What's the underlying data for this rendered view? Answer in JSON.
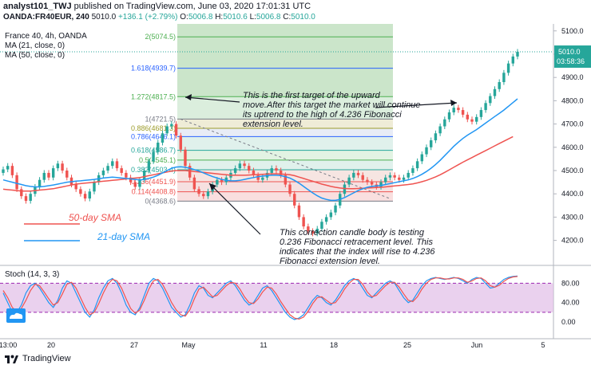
{
  "header": {
    "author": "analyst101_TWJ",
    "published": "published on TradingView.com, June 03, 2020 17:01:31 UTC",
    "symbol": "OANDA:FR40EUR, 240",
    "price": "5010.0",
    "change": "+136.1 (+2.79%)",
    "o_label": "O:",
    "o_value": "5006.8",
    "h_label": "H:",
    "h_value": "5010.6",
    "l_label": "L:",
    "l_value": "5006.8",
    "c_label": "C:",
    "c_value": "5010.0"
  },
  "legend": {
    "instrument": "France 40, 4h, OANDA",
    "ma21": "MA (21, close, 0)",
    "ma50": "MA (50, close, 0)",
    "stoch": "Stoch (14, 3, 3)"
  },
  "annotations": {
    "first_target": "This is the first target of the upward move.After this target the market will continue its uptrend to the high of 4.236 Fibonacci extension level.",
    "correction": "This correction candle body is testing 0.236 Fibonacci retracement  level. This indicates that the index will rise to 4.236 Fibonacci extension level.",
    "sma50": "50-day SMA",
    "sma21": "21-day SMA"
  },
  "fib_levels": [
    {
      "label": "2(5074.5)",
      "value": 5074.5,
      "color": "#4caf50"
    },
    {
      "label": "1.618(4939.7)",
      "value": 4939.7,
      "color": "#2962ff"
    },
    {
      "label": "1.272(4817.5)",
      "value": 4817.5,
      "color": "#4caf50"
    },
    {
      "label": "1(4721.5)",
      "value": 4721.5,
      "color": "#787b86"
    },
    {
      "label": "0.886(4681.3)",
      "value": 4681.3,
      "color": "#9c9c2a"
    },
    {
      "label": "0.786(4646.1)",
      "value": 4646.1,
      "color": "#2962ff"
    },
    {
      "label": "0.618(4586.7)",
      "value": 4586.7,
      "color": "#26a69a"
    },
    {
      "label": "0.5(4545.1)",
      "value": 4545.1,
      "color": "#4caf50"
    },
    {
      "label": "0.382(4503.4)",
      "value": 4503.4,
      "color": "#26a69a"
    },
    {
      "label": "0.236(4451.9)",
      "value": 4451.9,
      "color": "#ef5350"
    },
    {
      "label": "0.114(4408.8)",
      "value": 4408.8,
      "color": "#ef5350"
    },
    {
      "label": "0(4368.6)",
      "value": 4368.6,
      "color": "#787b86"
    }
  ],
  "chart_data": {
    "type": "candlestick",
    "title": "France 40, 4h, OANDA",
    "ylim": [
      4120,
      5130
    ],
    "y_ticks": [
      "5100.0",
      "5000.0",
      "4900.0",
      "4800.0",
      "4700.0",
      "4600.0",
      "4500.0",
      "4400.0",
      "4300.0",
      "4200.0"
    ],
    "x_ticks": [
      "13:00",
      "20",
      "27",
      "May",
      "11",
      "18",
      "25",
      "Jun",
      "5"
    ],
    "last_price": "5010.0",
    "countdown": "03:58:36",
    "close_series": [
      4505,
      4520,
      4480,
      4420,
      4390,
      4370,
      4400,
      4430,
      4460,
      4490,
      4470,
      4510,
      4530,
      4500,
      4470,
      4440,
      4420,
      4400,
      4380,
      4410,
      4450,
      4480,
      4500,
      4520,
      4540,
      4510,
      4490,
      4470,
      4450,
      4430,
      4460,
      4500,
      4540,
      4580,
      4620,
      4660,
      4690,
      4700,
      4650,
      4590,
      4520,
      4470,
      4420,
      4400,
      4390,
      4410,
      4440,
      4460,
      4450,
      4470,
      4490,
      4510,
      4530,
      4520,
      4500,
      4480,
      4460,
      4470,
      4490,
      4510,
      4500,
      4480,
      4440,
      4400,
      4350,
      4300,
      4260,
      4240,
      4230,
      4250,
      4280,
      4300,
      4320,
      4350,
      4400,
      4440,
      4470,
      4490,
      4480,
      4460,
      4450,
      4440,
      4430,
      4450,
      4470,
      4480,
      4470,
      4460,
      4470,
      4490,
      4510,
      4540,
      4570,
      4600,
      4630,
      4660,
      4690,
      4720,
      4750,
      4770,
      4760,
      4740,
      4720,
      4710,
      4730,
      4760,
      4790,
      4820,
      4850,
      4880,
      4920,
      4960,
      4990,
      5010
    ],
    "ma21_series": [
      4460,
      4455,
      4450,
      4445,
      4440,
      4435,
      4432,
      4430,
      4430,
      4432,
      4435,
      4438,
      4442,
      4446,
      4450,
      4452,
      4455,
      4456,
      4458,
      4460,
      4462,
      4465,
      4468,
      4470,
      4472,
      4470,
      4468,
      4466,
      4464,
      4462,
      4460,
      4462,
      4466,
      4472,
      4480,
      4490,
      4500,
      4510,
      4515,
      4516,
      4514,
      4510,
      4504,
      4498,
      4490,
      4482,
      4474,
      4468,
      4462,
      4458,
      4456,
      4456,
      4458,
      4462,
      4466,
      4470,
      4474,
      4476,
      4478,
      4480,
      4480,
      4478,
      4474,
      4468,
      4458,
      4446,
      4432,
      4418,
      4404,
      4392,
      4382,
      4376,
      4372,
      4372,
      4376,
      4384,
      4394,
      4404,
      4414,
      4422,
      4428,
      4432,
      4434,
      4436,
      4440,
      4444,
      4448,
      4452,
      4456,
      4460,
      4466,
      4474,
      4484,
      4496,
      4510,
      4526,
      4544,
      4564,
      4584,
      4604,
      4622,
      4638,
      4652,
      4664,
      4676,
      4690,
      4704,
      4718,
      4732,
      4746,
      4760,
      4776,
      4792,
      4808
    ],
    "ma50_series": [
      4420,
      4418,
      4416,
      4414,
      4412,
      4412,
      4412,
      4414,
      4416,
      4418,
      4420,
      4422,
      4426,
      4430,
      4434,
      4438,
      4442,
      4444,
      4446,
      4448,
      4450,
      4452,
      4454,
      4456,
      4458,
      4460,
      4462,
      4464,
      4466,
      4468,
      4470,
      4474,
      4478,
      4482,
      4486,
      4490,
      4494,
      4498,
      4500,
      4500,
      4500,
      4498,
      4496,
      4494,
      4492,
      4490,
      4488,
      4486,
      4484,
      4482,
      4480,
      4480,
      4480,
      4480,
      4481,
      4482,
      4483,
      4484,
      4485,
      4486,
      4486,
      4485,
      4484,
      4482,
      4478,
      4472,
      4466,
      4460,
      4454,
      4448,
      4442,
      4437,
      4432,
      4428,
      4425,
      4423,
      4422,
      4422,
      4423,
      4424,
      4425,
      4426,
      4427,
      4428,
      4430,
      4432,
      4434,
      4436,
      4438,
      4440,
      4443,
      4447,
      4452,
      4458,
      4465,
      4473,
      4482,
      4492,
      4503,
      4514,
      4525,
      4536,
      4546,
      4556,
      4566,
      4576,
      4586,
      4596,
      4606,
      4616,
      4626,
      4636,
      4646,
      4640
    ],
    "stoch_ticks": [
      "80.00",
      "40.00",
      "0.00"
    ],
    "stoch_k": [
      60,
      40,
      20,
      20,
      35,
      60,
      75,
      80,
      70,
      55,
      40,
      30,
      45,
      70,
      85,
      80,
      60,
      40,
      20,
      10,
      25,
      50,
      70,
      85,
      90,
      80,
      60,
      35,
      20,
      15,
      30,
      55,
      80,
      90,
      85,
      70,
      50,
      30,
      20,
      10,
      15,
      35,
      60,
      75,
      70,
      55,
      50,
      60,
      70,
      80,
      85,
      75,
      60,
      45,
      35,
      40,
      55,
      70,
      75,
      65,
      50,
      35,
      20,
      10,
      5,
      8,
      15,
      30,
      45,
      55,
      50,
      40,
      35,
      45,
      60,
      75,
      85,
      90,
      85,
      70,
      55,
      50,
      60,
      70,
      80,
      85,
      80,
      65,
      50,
      40,
      45,
      60,
      75,
      85,
      90,
      92,
      90,
      88,
      90,
      92,
      90,
      85,
      80,
      88,
      92,
      90,
      80,
      70,
      72,
      80,
      88,
      92,
      94,
      95
    ],
    "stoch_d": [
      65,
      50,
      30,
      22,
      28,
      45,
      65,
      78,
      75,
      62,
      48,
      35,
      40,
      58,
      78,
      82,
      70,
      50,
      30,
      15,
      20,
      38,
      60,
      78,
      88,
      85,
      70,
      48,
      28,
      18,
      25,
      45,
      68,
      85,
      88,
      78,
      60,
      40,
      25,
      15,
      12,
      25,
      48,
      68,
      72,
      62,
      52,
      55,
      65,
      75,
      82,
      80,
      68,
      52,
      40,
      38,
      48,
      62,
      72,
      70,
      58,
      42,
      28,
      15,
      8,
      6,
      10,
      22,
      38,
      50,
      52,
      45,
      38,
      40,
      52,
      68,
      80,
      88,
      88,
      78,
      62,
      52,
      55,
      65,
      75,
      82,
      82,
      72,
      58,
      45,
      42,
      52,
      68,
      80,
      88,
      91,
      91,
      89,
      89,
      91,
      91,
      88,
      82,
      85,
      90,
      91,
      85,
      75,
      72,
      76,
      84,
      90,
      93,
      94
    ]
  }
}
